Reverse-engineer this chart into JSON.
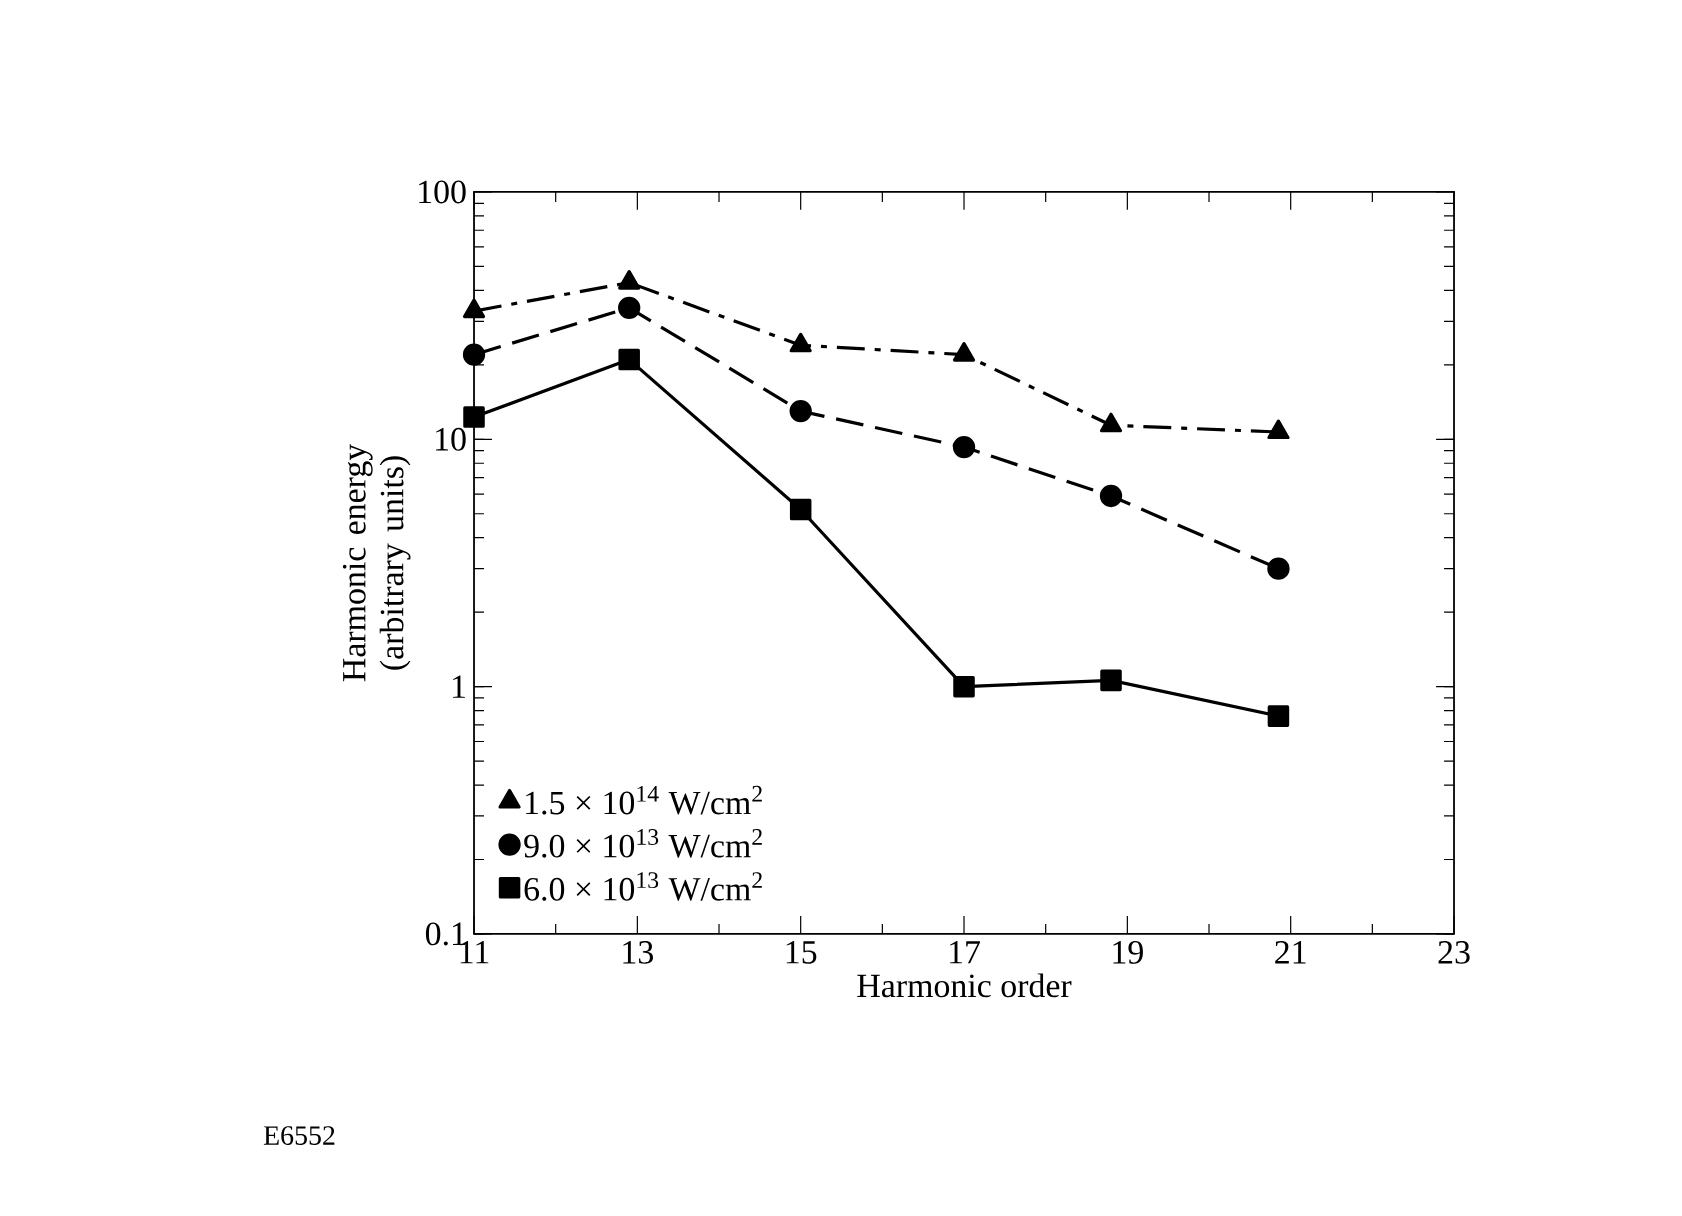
{
  "chart_data": {
    "type": "line",
    "xlabel": "Harmonic order",
    "ylabel": "Harmonic energy (arbitrary units)",
    "x": [
      11,
      12.9,
      15,
      17,
      18.8,
      20.85
    ],
    "series": [
      {
        "name": "1.5 × 10$^{14}$ W/cm$^{2}$",
        "color": "#000000",
        "marker": "triangle",
        "line_style": "dashdot",
        "values": [
          33,
          43,
          24,
          22,
          11.4,
          10.7
        ]
      },
      {
        "name": "9.0 × 10$^{13}$ W/cm$^{2}$",
        "color": "#000000",
        "marker": "circle",
        "line_style": "dashed",
        "values": [
          22,
          34,
          13,
          9.3,
          5.9,
          3.0
        ]
      },
      {
        "name": "6.0 × 10$^{13}$ W/cm$^{2}$",
        "color": "#000000",
        "marker": "square",
        "line_style": "solid",
        "values": [
          12.3,
          21,
          5.2,
          1.0,
          1.06,
          0.76
        ]
      }
    ],
    "xlim": [
      11,
      23
    ],
    "xticks": [
      11,
      13,
      15,
      17,
      19,
      21,
      23
    ],
    "ylim": [
      0.1,
      100
    ],
    "yticks": [
      0.1,
      1,
      10,
      100
    ],
    "log": "y",
    "legend": "bottom left",
    "annotations": [
      "E6552"
    ]
  }
}
